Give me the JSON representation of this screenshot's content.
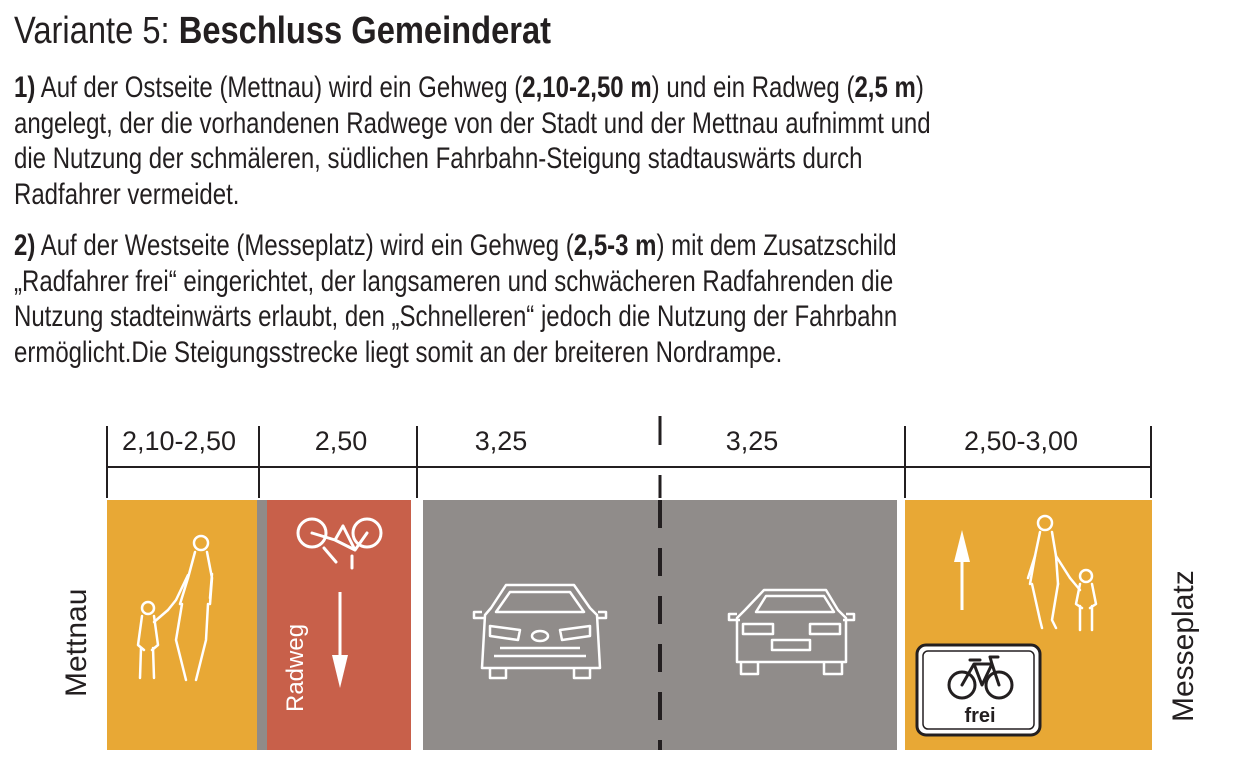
{
  "header": {
    "prefix": "Variante 5: ",
    "title_bold": "Beschluss Gemeinderat"
  },
  "para1": {
    "num": "1)",
    "t1": " Auf der Ostseite (Mettnau) wird ein Gehweg (",
    "b1": "2,10-2,50 m",
    "t2": ") und ein Radweg (",
    "b2": "2,5 m",
    "t3": ")",
    "line2": "angelegt, der die vorhandenen Radwege von der Stadt und der Mettnau aufnimmt und",
    "line3": "die Nutzung der schmäleren, südlichen Fahrbahn-Steigung stadtauswärts durch",
    "line4": "Radfahrer vermeidet."
  },
  "para2": {
    "num": "2)",
    "t1": " Auf der Westseite (Messeplatz) wird ein Gehweg (",
    "b1": "2,5-3 m",
    "t2": ") mit dem Zusatzschild",
    "line2": "„Radfahrer frei“ eingerichtet, der langsameren und schwächeren Radfahrenden die",
    "line3": "Nutzung stadteinwärts erlaubt, den „Schnelleren“ jedoch die Nutzung der Fahrbahn",
    "line4": "ermöglicht.Die Steigungsstrecke liegt somit an der breiteren Nordrampe."
  },
  "cross_section": {
    "dimensions": [
      "2,10-2,50",
      "2,50",
      "3,25",
      "3,25",
      "2,50-3,00"
    ],
    "left_label": "Mettnau",
    "right_label": "Messeplatz",
    "bike_lane_label": "Radweg",
    "sign_text": "frei",
    "colors": {
      "sidewalk": "#e8a835",
      "bike_lane": "#c8604a",
      "road": "#908c8a",
      "curb": "#8f8b89",
      "line": "#231f20"
    },
    "icons": [
      "pedestrian-mother-child-icon",
      "bicycle-icon",
      "down-arrow-icon",
      "car-front-icon",
      "car-rear-icon",
      "up-arrow-icon",
      "bicycle-sign-icon"
    ]
  }
}
